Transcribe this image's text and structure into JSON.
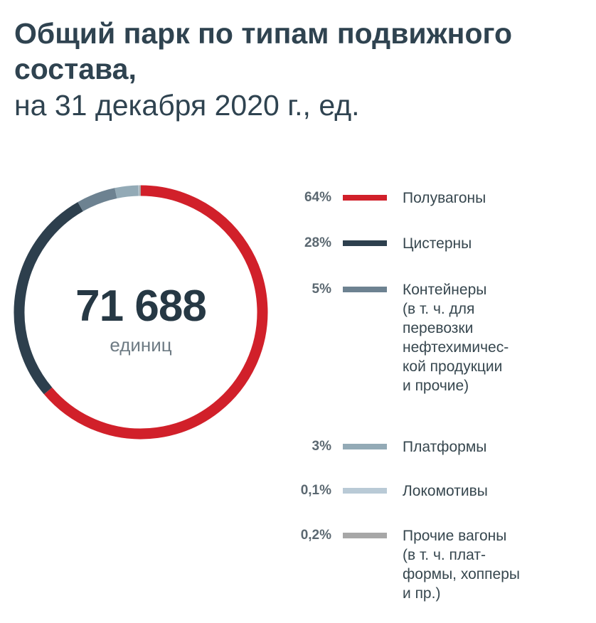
{
  "title": {
    "line1": "Общий парк по типам подвижного",
    "line2": "состава,",
    "subtitle": "на 31 декабря 2020 г., ед."
  },
  "center": {
    "value": "71 688",
    "unit": "единиц"
  },
  "chart_data": {
    "type": "pie",
    "variant": "donut",
    "title": "Общий парк по типам подвижного состава, на 31 декабря 2020 г., ед.",
    "total": 71688,
    "total_unit": "единиц",
    "legend_position": "right",
    "slices": [
      {
        "pct_label": "64%",
        "value": 64,
        "label": "Полувагоны",
        "color": "#d1202a"
      },
      {
        "pct_label": "28%",
        "value": 28,
        "label": "Цистерны",
        "color": "#2d3f4d"
      },
      {
        "pct_label": "5%",
        "value": 5,
        "label": "Контейнеры (в т. ч. для перевозки нефтехимической продукции и прочие)",
        "label_lines": [
          "Контейнеры",
          "(в т. ч. для",
          "перевозки",
          "нефтехимичес-",
          "кой продукции",
          "и прочие)"
        ],
        "color": "#6d8291"
      },
      {
        "pct_label": "3%",
        "value": 3,
        "label": "Платформы",
        "color": "#93aab6"
      },
      {
        "pct_label": "0,1%",
        "value": 0.1,
        "label": "Локомотивы",
        "color": "#b9cad6"
      },
      {
        "pct_label": "0,2%",
        "value": 0.2,
        "label": "Прочие вагоны (в т. ч. платформы, хопперы и пр.)",
        "label_lines": [
          "Прочие вагоны",
          "(в т. ч. плат-",
          "формы, хопперы",
          "и пр.)"
        ],
        "color": "#a7a7a7"
      }
    ]
  }
}
